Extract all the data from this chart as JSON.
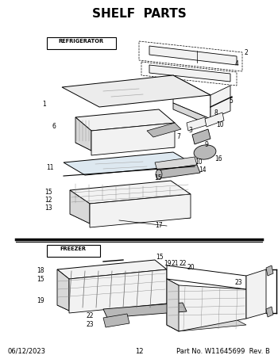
{
  "title": "SHELF  PARTS",
  "title_fontsize": 11,
  "title_fontweight": "bold",
  "footer_left": "06/12/2023",
  "footer_center": "12",
  "footer_right": "Part No. W11645699  Rev. B",
  "footer_fontsize": 6.0,
  "bg_color": "#ffffff",
  "line_color": "#000000",
  "refrigerator_label": "REFRIGERATOR",
  "freezer_label": "FREEZER"
}
